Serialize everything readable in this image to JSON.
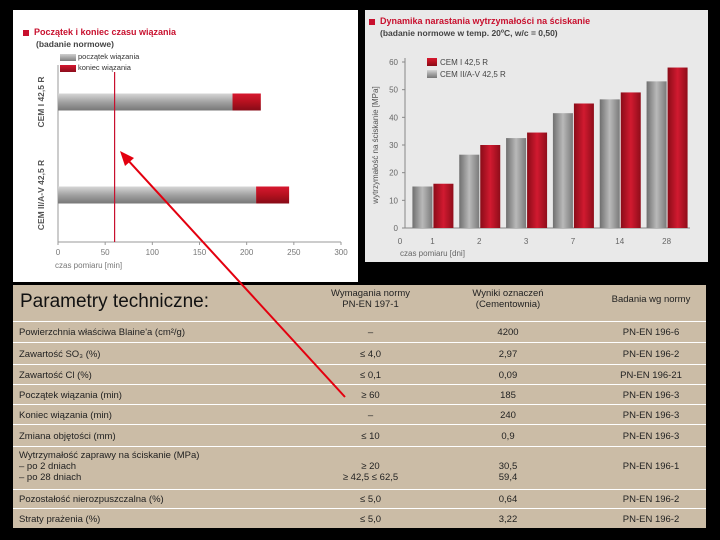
{
  "left_chart": {
    "title": "Początek i koniec czasu wiązania",
    "subtitle": "(badanie normowe)",
    "legend": [
      "początek wiązania",
      "koniec wiązania"
    ],
    "xlabel": "czas pomiaru [min]",
    "xticks": [
      "0",
      "50",
      "100",
      "150",
      "200",
      "250",
      "300"
    ],
    "colors": {
      "start": "#9a9a9a",
      "end": "#b5111f",
      "marker": "#c8102e"
    }
  },
  "right_chart": {
    "title": "Dynamika narastania wytrzymałości na ściskanie",
    "subtitle": "(badanie normowe w temp. 20ºC, w/c = 0,50)",
    "ylabel": "wytrzymałość na ściskanie [MPa]",
    "xlabel": "czas pomiaru [dni]",
    "yticks": [
      "0",
      "10",
      "20",
      "30",
      "40",
      "50",
      "60"
    ],
    "xticks": [
      "1",
      "2",
      "3",
      "7",
      "14",
      "28"
    ],
    "legend": [
      "CEM I 42,5 R",
      "CEM II/A-V 42,5 R"
    ],
    "colors": {
      "cem1": "#b5111f",
      "cem2": "#8a8a8a"
    }
  },
  "chart_data": [
    {
      "type": "bar",
      "orientation": "horizontal",
      "title": "Początek i koniec czasu wiązania",
      "subtitle": "(badanie normowe)",
      "xlabel": "czas pomiaru [min]",
      "xlim": [
        0,
        300
      ],
      "categories": [
        "CEM I 42,5 R",
        "CEM II/A-V 42,5 R"
      ],
      "series": [
        {
          "name": "początek wiązania",
          "values": [
            185,
            210
          ]
        },
        {
          "name": "koniec wiązania",
          "values": [
            215,
            245
          ]
        }
      ],
      "reference_line_x": 60
    },
    {
      "type": "bar",
      "title": "Dynamika narastania wytrzymałości na ściskanie",
      "subtitle": "(badanie normowe w temp. 20ºC, w/c = 0,50)",
      "xlabel": "czas pomiaru [dni]",
      "ylabel": "wytrzymałość na ściskanie [MPa]",
      "ylim": [
        0,
        60
      ],
      "categories": [
        "1",
        "2",
        "3",
        "7",
        "14",
        "28"
      ],
      "series": [
        {
          "name": "CEM I 42,5 R",
          "values": [
            16,
            30,
            34.5,
            45,
            49,
            58
          ]
        },
        {
          "name": "CEM II/A-V 42,5 R",
          "values": [
            15,
            26.5,
            32.5,
            41.5,
            46.5,
            53
          ]
        }
      ]
    }
  ],
  "table": {
    "title": "Parametry techniczne:",
    "headers": [
      "Wymagania normy\nPN-EN 197-1",
      "Wyniki oznaczeń\n(Cementownia)",
      "Badania wg normy"
    ],
    "rows": [
      {
        "name": "Powierzchnia właściwa Blaine'a (cm²/g)",
        "req": "–",
        "result": "4200",
        "norm": "PN-EN 196-6"
      },
      {
        "name": "Zawartość SO₃ (%)",
        "req": "≤ 4,0",
        "result": "2,97",
        "norm": "PN-EN 196-2"
      },
      {
        "name": "Zawartość Cl (%)",
        "req": "≤ 0,1",
        "result": "0,09",
        "norm": "PN-EN 196-21"
      },
      {
        "name": "Początek wiązania (min)",
        "req": "≥ 60",
        "result": "185",
        "norm": "PN-EN 196-3"
      },
      {
        "name": "Koniec wiązania (min)",
        "req": "–",
        "result": "240",
        "norm": "PN-EN 196-3"
      },
      {
        "name": "Zmiana objętości (mm)",
        "req": "≤ 10",
        "result": "0,9",
        "norm": "PN-EN 196-3"
      },
      {
        "name": "Wytrzymałość zaprawy na ściskanie (MPa)\n– po 2 dniach\n– po 28 dniach",
        "req": "\n≥ 20\n≥ 42,5 ≤ 62,5",
        "result": "\n30,5\n59,4",
        "norm": "PN-EN 196-1"
      },
      {
        "name": "Pozostałość nierozpuszczalna (%)",
        "req": "≤ 5,0",
        "result": "0,64",
        "norm": "PN-EN 196-2"
      },
      {
        "name": "Straty prażenia (%)",
        "req": "≤ 5,0",
        "result": "3,22",
        "norm": "PN-EN 196-2"
      }
    ]
  },
  "annotation": {
    "arrow_color": "#e3000f"
  }
}
